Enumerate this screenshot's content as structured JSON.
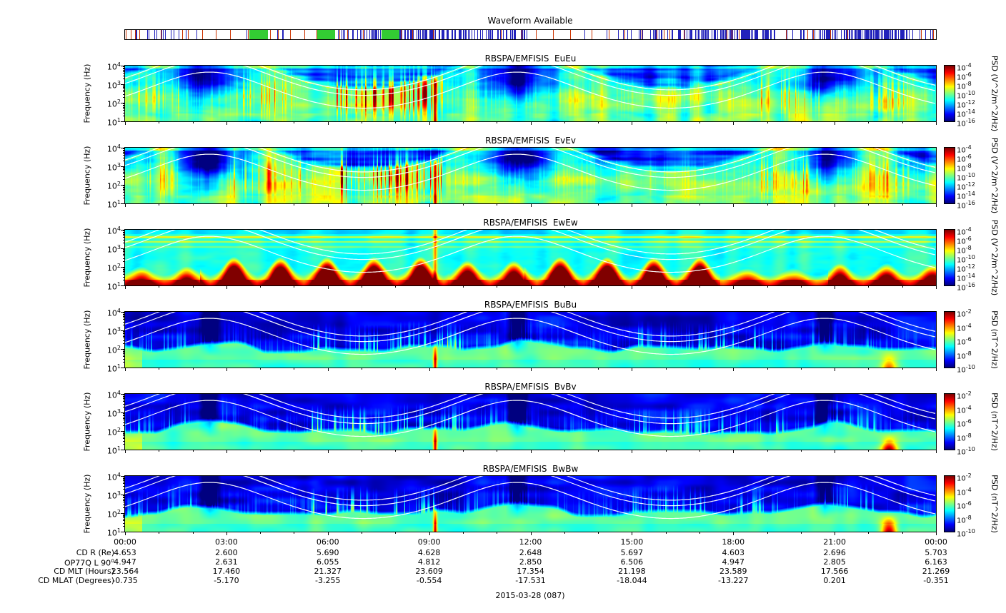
{
  "waveform": {
    "title": "Waveform Available",
    "green_blocks": [
      [
        0.153,
        0.176
      ],
      [
        0.237,
        0.259
      ],
      [
        0.316,
        0.338
      ]
    ],
    "tick_color_blue": "#2222bb",
    "tick_color_red": "#cc3300",
    "block_color": "#33cc33"
  },
  "chart_data": {
    "type": "heatmap",
    "subtype": "spectrogram-stack",
    "x_tick_labels": [
      "00:00",
      "03:00",
      "06:00",
      "09:00",
      "12:00",
      "15:00",
      "18:00",
      "21:00",
      "00:00"
    ],
    "freq_axis": {
      "label": "Frequency (Hz)",
      "scale": "log",
      "range_hz": [
        10,
        10000
      ],
      "tick_exponents": [
        4,
        3,
        2,
        1
      ]
    },
    "overlays": "three white frequency curves per panel peaking near 02:30, 11:40 and 20:45",
    "panels": [
      {
        "title": "RBSPA/EMFISIS  EuEu",
        "style": "E",
        "colorbar": {
          "label": "PSD (V^2/m^2/Hz)",
          "tick_exponents": [
            -4,
            -6,
            -8,
            -10,
            -12,
            -14,
            -16
          ],
          "range": [
            "1e-16",
            "1e-4"
          ]
        }
      },
      {
        "title": "RBSPA/EMFISIS  EvEv",
        "style": "E",
        "colorbar": {
          "label": "PSD (V^2/m^2/Hz)",
          "tick_exponents": [
            -4,
            -6,
            -8,
            -10,
            -12,
            -14,
            -16
          ],
          "range": [
            "1e-16",
            "1e-4"
          ]
        }
      },
      {
        "title": "RBSPA/EMFISIS  EwEw",
        "style": "Ew",
        "colorbar": {
          "label": "PSD (V^2/m^2/Hz)",
          "tick_exponents": [
            -4,
            -6,
            -8,
            -10,
            -12,
            -14,
            -16
          ],
          "range": [
            "1e-16",
            "1e-4"
          ]
        }
      },
      {
        "title": "RBSPA/EMFISIS  BuBu",
        "style": "B",
        "colorbar": {
          "label": "PSD (nT^2/Hz)",
          "tick_exponents": [
            -2,
            -4,
            -6,
            -8,
            -10
          ],
          "range": [
            "1e-10",
            "1e-2"
          ]
        }
      },
      {
        "title": "RBSPA/EMFISIS  BvBv",
        "style": "B",
        "colorbar": {
          "label": "PSD (nT^2/Hz)",
          "tick_exponents": [
            -2,
            -4,
            -6,
            -8,
            -10
          ],
          "range": [
            "1e-10",
            "1e-2"
          ]
        }
      },
      {
        "title": "RBSPA/EMFISIS  BwBw",
        "style": "B",
        "colorbar": {
          "label": "PSD (nT^2/Hz)",
          "tick_exponents": [
            -2,
            -4,
            -6,
            -8,
            -10
          ],
          "range": [
            "1e-10",
            "1e-2"
          ]
        }
      }
    ],
    "ephemeris": {
      "rows": [
        {
          "label": "CD R (Re)",
          "values": [
            "4.653",
            "2.600",
            "5.690",
            "4.628",
            "2.648",
            "5.697",
            "4.603",
            "2.696",
            "5.703"
          ]
        },
        {
          "label": "OP77Q L 90°",
          "values": [
            "4.947",
            "2.631",
            "6.055",
            "4.812",
            "2.850",
            "6.506",
            "4.947",
            "2.805",
            "6.163"
          ]
        },
        {
          "label": "CD MLT (Hours)",
          "values": [
            "23.564",
            "17.460",
            "21.327",
            "23.609",
            "17.354",
            "21.198",
            "23.589",
            "17.566",
            "21.269"
          ]
        },
        {
          "label": "CD MLAT (Degrees)",
          "values": [
            "-0.735",
            "-5.170",
            "-3.255",
            "-0.554",
            "-17.531",
            "-18.044",
            "-13.227",
            "0.201",
            "-0.351"
          ]
        }
      ]
    },
    "date_label": "2015-03-28 (087)"
  }
}
